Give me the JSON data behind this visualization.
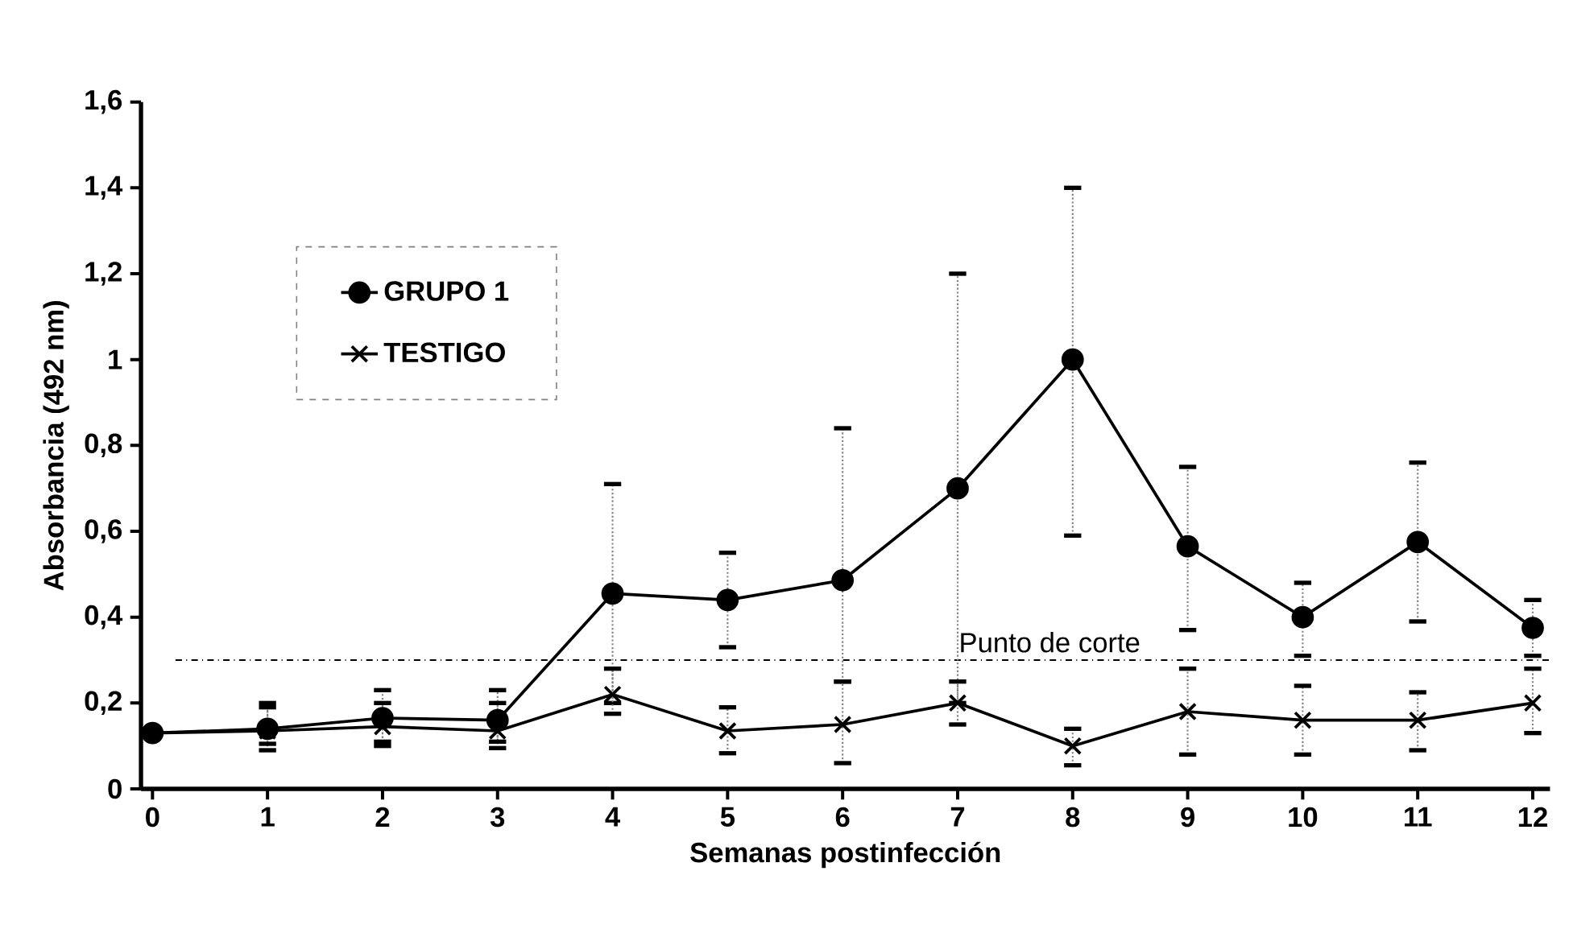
{
  "chart_data": {
    "type": "line",
    "xlabel": "Semanas postinfección",
    "ylabel": "Absorbancia (492 nm)",
    "categories": [
      "0",
      "1",
      "2",
      "3",
      "4",
      "5",
      "6",
      "7",
      "8",
      "9",
      "10",
      "11",
      "12"
    ],
    "series": [
      {
        "name": "GRUPO 1",
        "color": "#000000",
        "marker": "circle",
        "values": [
          0.13,
          0.14,
          0.165,
          0.16,
          0.455,
          0.44,
          0.486,
          0.7,
          1.0,
          0.565,
          0.4,
          0.575,
          0.375
        ],
        "errors": [
          null,
          [
            0.09,
            0.2
          ],
          [
            0.1,
            0.23
          ],
          [
            0.095,
            0.23
          ],
          [
            0.2,
            0.71
          ],
          [
            0.33,
            0.55
          ],
          [
            0.25,
            0.84
          ],
          [
            0.2,
            1.2
          ],
          [
            0.59,
            1.4
          ],
          [
            0.37,
            0.75
          ],
          [
            0.31,
            0.48
          ],
          [
            0.39,
            0.76
          ],
          [
            0.31,
            0.44
          ]
        ]
      },
      {
        "name": "TESTIGO",
        "color": "#000000",
        "marker": "cross",
        "values": [
          0.13,
          0.135,
          0.145,
          0.135,
          0.22,
          0.135,
          0.15,
          0.2,
          0.1,
          0.18,
          0.16,
          0.16,
          0.2
        ],
        "errors": [
          null,
          [
            0.105,
            0.19
          ],
          [
            0.11,
            0.2
          ],
          [
            0.11,
            0.2
          ],
          [
            0.175,
            0.28
          ],
          [
            0.083,
            0.19
          ],
          [
            0.06,
            0.25
          ],
          [
            0.15,
            0.25
          ],
          [
            0.055,
            0.14
          ],
          [
            0.08,
            0.28
          ],
          [
            0.08,
            0.24
          ],
          [
            0.09,
            0.225
          ],
          [
            0.13,
            0.28
          ]
        ]
      }
    ],
    "ylim": [
      0,
      1.6
    ],
    "yticks": [
      0,
      {
        "value": 0.2,
        "label": "0,2"
      },
      {
        "value": 0.4,
        "label": "0,4"
      },
      {
        "value": 0.6,
        "label": "0,6"
      },
      {
        "value": 0.8,
        "label": "0,8"
      },
      1,
      {
        "value": 1.2,
        "label": "1,2"
      },
      {
        "value": 1.4,
        "label": "1,4"
      },
      {
        "value": 1.6,
        "label": "1,6"
      }
    ],
    "ref_lines": [
      {
        "axis": "y",
        "value": 0.3,
        "label": "Punto de corte",
        "line_style": "dashdotted"
      }
    ],
    "legend": "top left",
    "grid": false
  }
}
